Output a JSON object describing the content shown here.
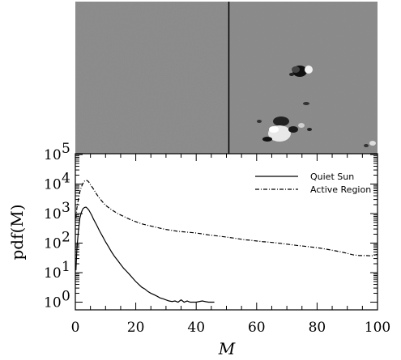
{
  "images": [
    {
      "name": "Quiet Sun magnetogram"
    },
    {
      "name": "Active Region magnetogram"
    }
  ],
  "chart_data": {
    "type": "line",
    "title": "",
    "xlabel": "M",
    "ylabel": "pdf(M)",
    "xlim": [
      0,
      100
    ],
    "ylim": [
      0.55,
      100000
    ],
    "yscale": "log",
    "grid": false,
    "legend": "top-right",
    "x_ticks": [
      0,
      20,
      40,
      60,
      80,
      100
    ],
    "x_tick_labels": [
      "0",
      "20",
      "40",
      "60",
      "80",
      "100"
    ],
    "y_ticks": [
      1,
      10,
      100,
      1000,
      10000,
      100000
    ],
    "y_tick_labels": [
      {
        "base": "10",
        "exp": "0"
      },
      {
        "base": "10",
        "exp": "1"
      },
      {
        "base": "10",
        "exp": "2"
      },
      {
        "base": "10",
        "exp": "3"
      },
      {
        "base": "10",
        "exp": "4"
      },
      {
        "base": "10",
        "exp": "5"
      }
    ],
    "series": [
      {
        "name": "Quiet Sun",
        "style": "solid",
        "color": "#000000",
        "x": [
          0.2,
          0.5,
          1,
          1.5,
          2,
          2.5,
          3,
          3.5,
          4,
          4.5,
          5,
          5.5,
          6,
          7,
          8,
          9,
          10,
          11,
          12,
          13,
          14,
          15,
          16,
          17,
          18,
          19,
          20,
          21,
          22,
          23,
          24,
          25,
          26,
          27,
          28,
          29,
          30,
          31,
          32,
          33,
          34,
          35,
          36,
          37,
          38,
          40,
          42,
          44,
          46
        ],
        "y": [
          12,
          60,
          250,
          700,
          1100,
          1450,
          1600,
          1650,
          1500,
          1300,
          1050,
          850,
          650,
          420,
          260,
          170,
          110,
          75,
          50,
          35,
          26,
          19,
          14,
          11,
          8.5,
          6.5,
          5,
          4,
          3.2,
          2.8,
          2.3,
          2,
          1.8,
          1.6,
          1.4,
          1.3,
          1.2,
          1.1,
          1.05,
          1.1,
          1.0,
          1.2,
          1.0,
          1.1,
          1.0,
          1.0,
          1.1,
          1.0,
          1.0
        ]
      },
      {
        "name": "Active Region",
        "style": "dashdot",
        "color": "#000000",
        "x": [
          0.2,
          0.5,
          1,
          1.5,
          2,
          2.5,
          3,
          3.5,
          4,
          4.5,
          5,
          6,
          7,
          8,
          9,
          10,
          12,
          14,
          16,
          18,
          20,
          22,
          24,
          26,
          28,
          30,
          32,
          34,
          36,
          38,
          40,
          42,
          44,
          46,
          48,
          50,
          52,
          54,
          56,
          58,
          60,
          62,
          64,
          66,
          68,
          70,
          72,
          74,
          76,
          78,
          80,
          82,
          84,
          86,
          88,
          90,
          92,
          94,
          96,
          98,
          100
        ],
        "y": [
          700,
          1500,
          3000,
          5500,
          8000,
          10500,
          12500,
          13500,
          13000,
          11500,
          9500,
          6800,
          4600,
          3300,
          2500,
          1900,
          1350,
          1000,
          800,
          640,
          530,
          450,
          400,
          360,
          320,
          290,
          270,
          250,
          240,
          230,
          220,
          205,
          190,
          180,
          170,
          160,
          150,
          140,
          130,
          125,
          118,
          112,
          108,
          103,
          98,
          92,
          87,
          82,
          78,
          74,
          70,
          65,
          60,
          55,
          50,
          45,
          40,
          38,
          38,
          37,
          42
        ]
      }
    ]
  }
}
